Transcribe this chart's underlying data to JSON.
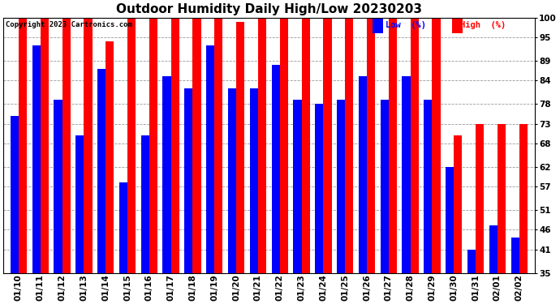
{
  "title": "Outdoor Humidity Daily High/Low 20230203",
  "copyright": "Copyright 2023 Cartronics.com",
  "legend_low": "Low  (%)",
  "legend_high": "High  (%)",
  "dates": [
    "01/10",
    "01/11",
    "01/12",
    "01/13",
    "01/14",
    "01/15",
    "01/16",
    "01/17",
    "01/18",
    "01/19",
    "01/20",
    "01/21",
    "01/22",
    "01/23",
    "01/24",
    "01/25",
    "01/26",
    "01/27",
    "01/28",
    "01/29",
    "01/30",
    "01/31",
    "02/01",
    "02/02"
  ],
  "high": [
    100,
    100,
    100,
    100,
    94,
    100,
    100,
    100,
    100,
    100,
    99,
    100,
    100,
    100,
    100,
    100,
    100,
    100,
    100,
    100,
    70,
    73,
    73,
    73
  ],
  "low": [
    75,
    93,
    79,
    70,
    87,
    58,
    70,
    85,
    82,
    93,
    82,
    82,
    88,
    79,
    78,
    79,
    85,
    79,
    85,
    79,
    62,
    41,
    47,
    44
  ],
  "high_color": "#ff0000",
  "low_color": "#0000ff",
  "bg_color": "#ffffff",
  "grid_color": "#999999",
  "yticks": [
    35,
    41,
    46,
    51,
    57,
    62,
    68,
    73,
    78,
    84,
    89,
    95,
    100
  ],
  "ymin": 35,
  "ymax": 100,
  "title_fontsize": 11,
  "tick_fontsize": 7.5,
  "bar_width": 0.38
}
